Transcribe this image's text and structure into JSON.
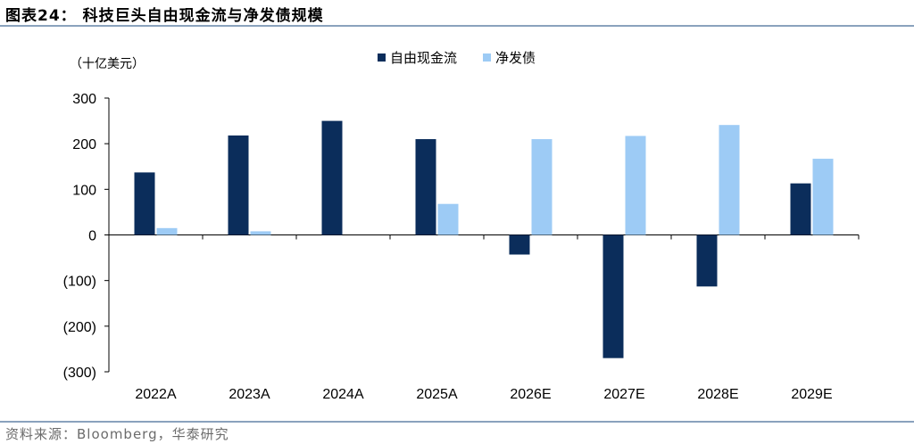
{
  "header": {
    "title": "图表24：  科技巨头自由现金流与净发债规模"
  },
  "footer": {
    "source": "资料来源：Bloomberg，华泰研究"
  },
  "chart_data": {
    "type": "bar",
    "unit_label": "（十亿美元）",
    "categories": [
      "2022A",
      "2023A",
      "2024A",
      "2025A",
      "2026E",
      "2027E",
      "2028E",
      "2029E"
    ],
    "series": [
      {
        "name": "自由现金流",
        "color": "#0b2d5b",
        "values": [
          137,
          218,
          250,
          210,
          -43,
          -270,
          -113,
          113
        ]
      },
      {
        "name": "净发债",
        "color": "#9dcbf5",
        "values": [
          15,
          8,
          0,
          68,
          210,
          217,
          241,
          167
        ]
      }
    ],
    "y_ticks": [
      "300",
      "200",
      "100",
      "0",
      "(100)",
      "(200)",
      "(300)"
    ],
    "ylim": [
      -300,
      300
    ],
    "legend_position": "top-center",
    "grid": false
  }
}
